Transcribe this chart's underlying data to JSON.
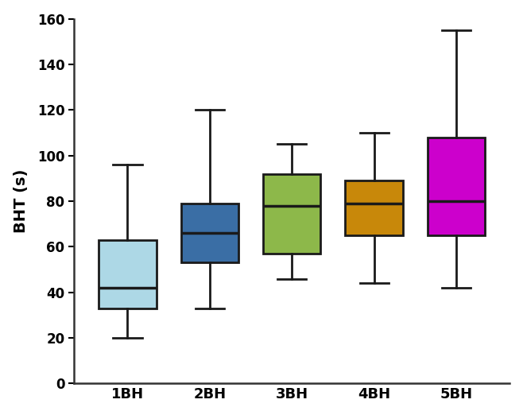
{
  "categories": [
    "1BH",
    "2BH",
    "3BH",
    "4BH",
    "5BH"
  ],
  "boxes": [
    {
      "whisker_low": 20,
      "q1": 33,
      "median": 42,
      "q3": 63,
      "whisker_high": 96
    },
    {
      "whisker_low": 33,
      "q1": 53,
      "median": 66,
      "q3": 79,
      "whisker_high": 120
    },
    {
      "whisker_low": 46,
      "q1": 57,
      "median": 78,
      "q3": 92,
      "whisker_high": 105
    },
    {
      "whisker_low": 44,
      "q1": 65,
      "median": 79,
      "q3": 89,
      "whisker_high": 110
    },
    {
      "whisker_low": 42,
      "q1": 65,
      "median": 80,
      "q3": 108,
      "whisker_high": 155
    }
  ],
  "colors": [
    "#add8e6",
    "#3a6ea5",
    "#8db84a",
    "#c8880a",
    "#cc00cc"
  ],
  "edge_color": "#1a1a1a",
  "ylabel": "BHT (s)",
  "ylim": [
    0,
    160
  ],
  "yticks": [
    0,
    20,
    40,
    60,
    80,
    100,
    120,
    140,
    160
  ],
  "box_width": 0.7,
  "linewidth": 2.0,
  "background_color": "#ffffff"
}
